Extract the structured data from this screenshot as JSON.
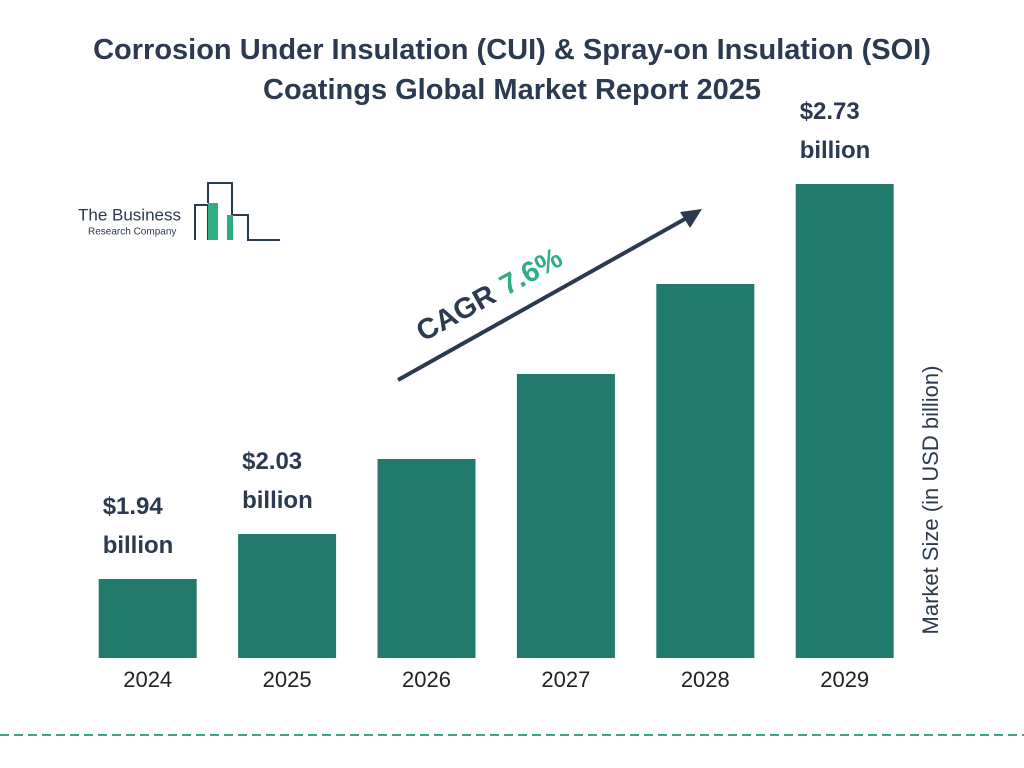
{
  "chart_data": {
    "type": "bar",
    "title": "Corrosion Under Insulation (CUI) & Spray-on Insulation (SOI) Coatings Global Market Report 2025",
    "categories": [
      "2024",
      "2025",
      "2026",
      "2027",
      "2028",
      "2029"
    ],
    "values": [
      1.94,
      2.03,
      2.18,
      2.35,
      2.53,
      2.73
    ],
    "value_labels": [
      "$1.94 billion",
      "$2.03 billion",
      null,
      null,
      null,
      "$2.73 billion"
    ],
    "color": "#217a6b",
    "y_label": "Market Size (in USD billion)",
    "cagr_label": "CAGR",
    "cagr_value": "7.6%"
  },
  "logo": {
    "line1": "The Business",
    "line2": "Research Company"
  }
}
